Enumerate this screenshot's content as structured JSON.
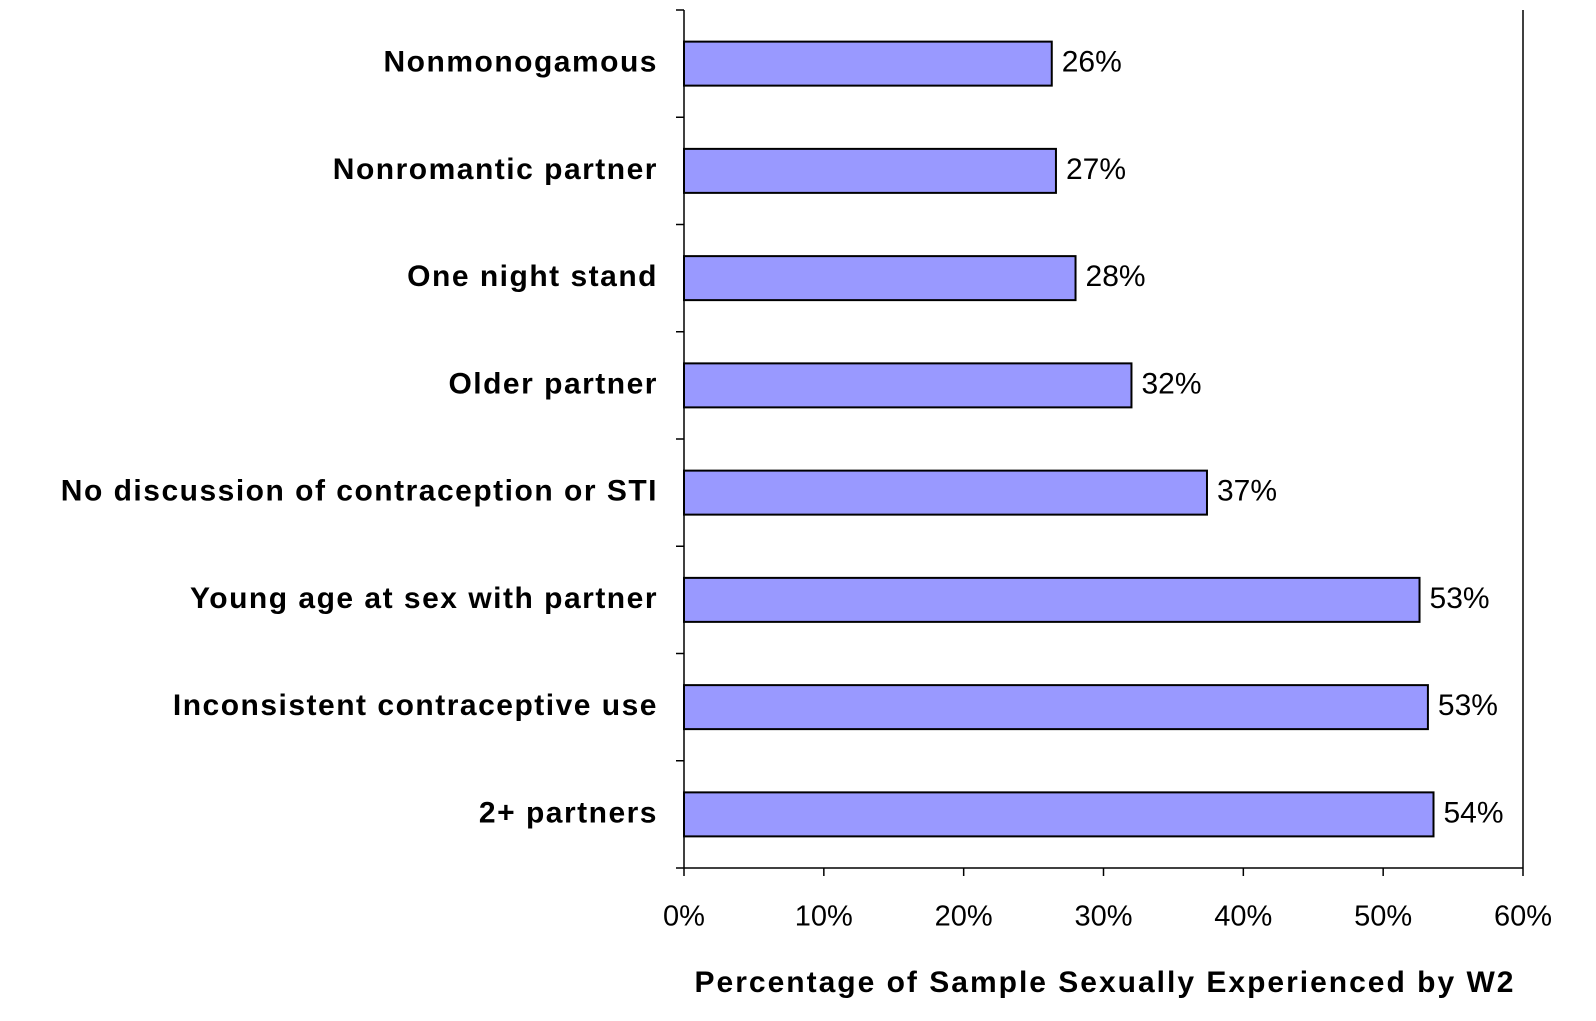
{
  "chart_data": {
    "type": "bar",
    "orientation": "horizontal",
    "categories": [
      "Nonmonogamous",
      "Nonromantic partner",
      "One night stand",
      "Older partner",
      "No discussion of contraception or STI",
      "Young age at sex with partner",
      "Inconsistent contraceptive use",
      "2+ partners"
    ],
    "values": [
      26.3,
      26.6,
      28.0,
      32.0,
      37.4,
      52.6,
      53.2,
      53.6
    ],
    "value_labels": [
      "26%",
      "27%",
      "28%",
      "32%",
      "37%",
      "53%",
      "53%",
      "54%"
    ],
    "color": "#9999ff",
    "x_label": "Percentage of Sample Sexually Experienced by W2",
    "xlim": [
      0,
      60
    ],
    "xticks": [
      {
        "value": 0,
        "label": "0%"
      },
      {
        "value": 10,
        "label": "10%"
      },
      {
        "value": 20,
        "label": "20%"
      },
      {
        "value": 30,
        "label": "30%"
      },
      {
        "value": 40,
        "label": "40%"
      },
      {
        "value": 50,
        "label": "50%"
      },
      {
        "value": 60,
        "label": "60%"
      }
    ],
    "grid": false
  }
}
